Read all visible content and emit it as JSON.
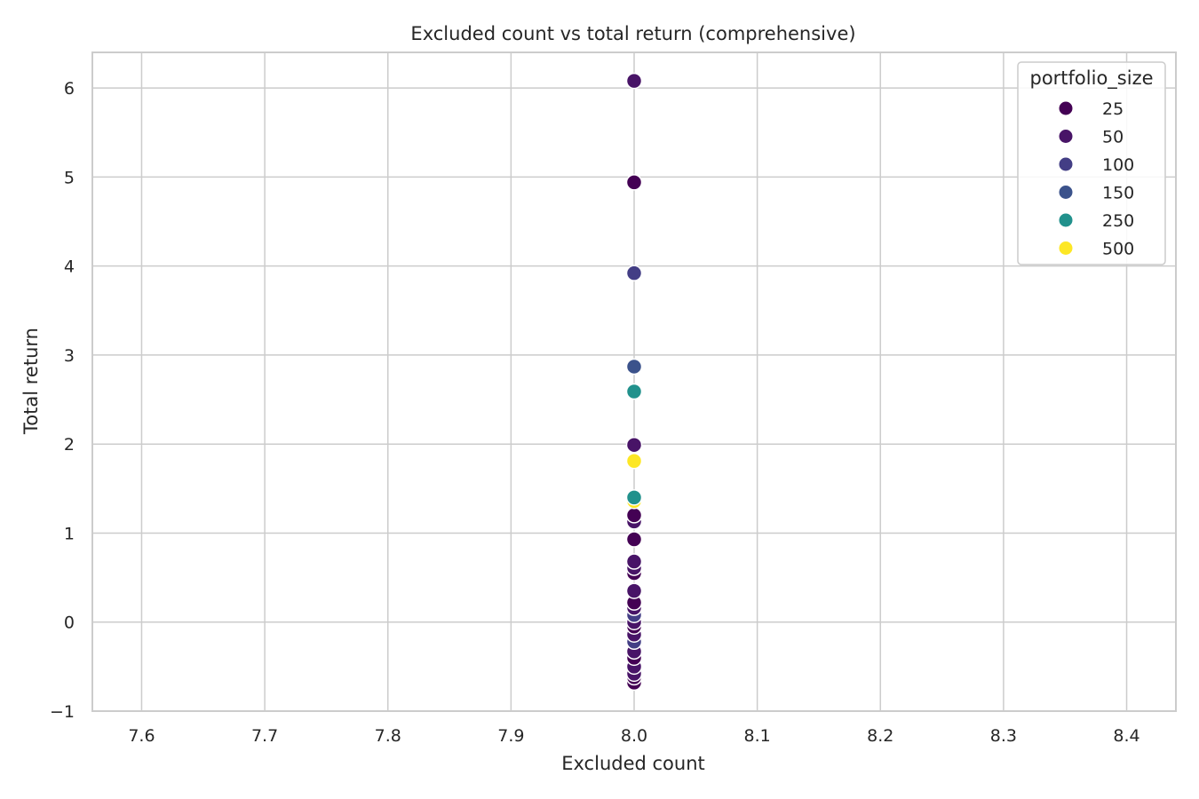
{
  "chart_data": {
    "type": "scatter",
    "title": "Excluded count vs total return (comprehensive)",
    "xlabel": "Excluded count",
    "ylabel": "Total return",
    "xlim": [
      7.56,
      8.44
    ],
    "ylim": [
      -1.0,
      6.4
    ],
    "x_ticks": [
      7.6,
      7.7,
      7.8,
      7.9,
      8.0,
      8.1,
      8.2,
      8.3,
      8.4
    ],
    "x_tick_labels": [
      "7.6",
      "7.7",
      "7.8",
      "7.9",
      "8.0",
      "8.1",
      "8.2",
      "8.3",
      "8.4"
    ],
    "y_ticks": [
      -1,
      0,
      1,
      2,
      3,
      4,
      5,
      6
    ],
    "y_tick_labels": [
      "−1",
      "0",
      "1",
      "2",
      "3",
      "4",
      "5",
      "6"
    ],
    "grid": true,
    "legend": {
      "title": "portfolio_size",
      "placement": "top-right",
      "entries": [
        {
          "label": "25",
          "color": "#440154"
        },
        {
          "label": "50",
          "color": "#481467"
        },
        {
          "label": "100",
          "color": "#433e85"
        },
        {
          "label": "150",
          "color": "#3b528b"
        },
        {
          "label": "250",
          "color": "#21918c"
        },
        {
          "label": "500",
          "color": "#fde725"
        }
      ]
    },
    "series": [
      {
        "name": "25",
        "color": "#440154",
        "points": [
          {
            "x": 8.0,
            "y": 4.94
          },
          {
            "x": 8.0,
            "y": 1.2
          },
          {
            "x": 8.0,
            "y": 0.93
          },
          {
            "x": 8.0,
            "y": 0.55
          },
          {
            "x": 8.0,
            "y": 0.22
          },
          {
            "x": 8.0,
            "y": -0.05
          },
          {
            "x": 8.0,
            "y": -0.4
          },
          {
            "x": 8.0,
            "y": -0.62
          },
          {
            "x": 8.0,
            "y": -0.68
          }
        ]
      },
      {
        "name": "50",
        "color": "#481467",
        "points": [
          {
            "x": 8.0,
            "y": 6.08
          },
          {
            "x": 8.0,
            "y": 1.99
          },
          {
            "x": 8.0,
            "y": 1.13
          },
          {
            "x": 8.0,
            "y": 0.68
          },
          {
            "x": 8.0,
            "y": 0.61
          },
          {
            "x": 8.0,
            "y": 0.35
          },
          {
            "x": 8.0,
            "y": 0.16
          },
          {
            "x": 8.0,
            "y": 0.0
          },
          {
            "x": 8.0,
            "y": -0.14
          },
          {
            "x": 8.0,
            "y": -0.33
          },
          {
            "x": 8.0,
            "y": -0.5
          },
          {
            "x": 8.0,
            "y": -0.58
          }
        ]
      },
      {
        "name": "100",
        "color": "#433e85",
        "points": [
          {
            "x": 8.0,
            "y": 3.92
          },
          {
            "x": 8.0,
            "y": 0.08
          },
          {
            "x": 8.0,
            "y": -0.22
          }
        ]
      },
      {
        "name": "150",
        "color": "#3b528b",
        "points": [
          {
            "x": 8.0,
            "y": 2.87
          }
        ]
      },
      {
        "name": "250",
        "color": "#21918c",
        "points": [
          {
            "x": 8.0,
            "y": 2.59
          },
          {
            "x": 8.0,
            "y": 1.4
          }
        ]
      },
      {
        "name": "500",
        "color": "#fde725",
        "points": [
          {
            "x": 8.0,
            "y": 1.81
          },
          {
            "x": 8.0,
            "y": 1.36
          }
        ]
      }
    ]
  }
}
